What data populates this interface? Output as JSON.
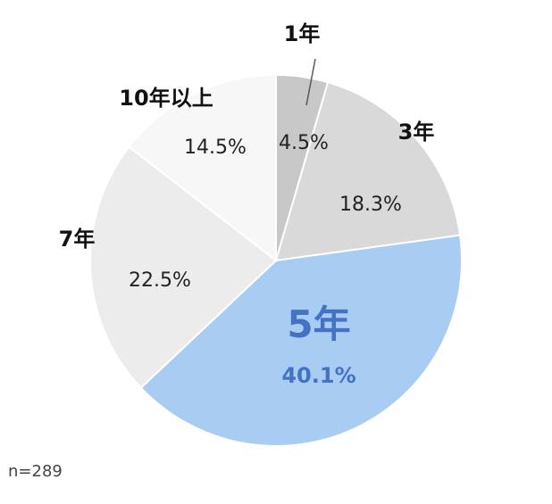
{
  "chart_data": {
    "type": "pie",
    "categories": [
      "1年",
      "3年",
      "5年",
      "7年",
      "10年以上"
    ],
    "values": [
      4.5,
      18.3,
      40.1,
      22.5,
      14.5
    ],
    "value_labels": [
      "4.5%",
      "18.3%",
      "40.1%",
      "22.5%",
      "14.5%"
    ],
    "colors": [
      "#c8c8c8",
      "#d9d9d9",
      "#a9cdf2",
      "#ececec",
      "#f7f7f7"
    ],
    "highlight": {
      "category": "5年",
      "color": "#4472c4"
    },
    "note": "n=289"
  }
}
